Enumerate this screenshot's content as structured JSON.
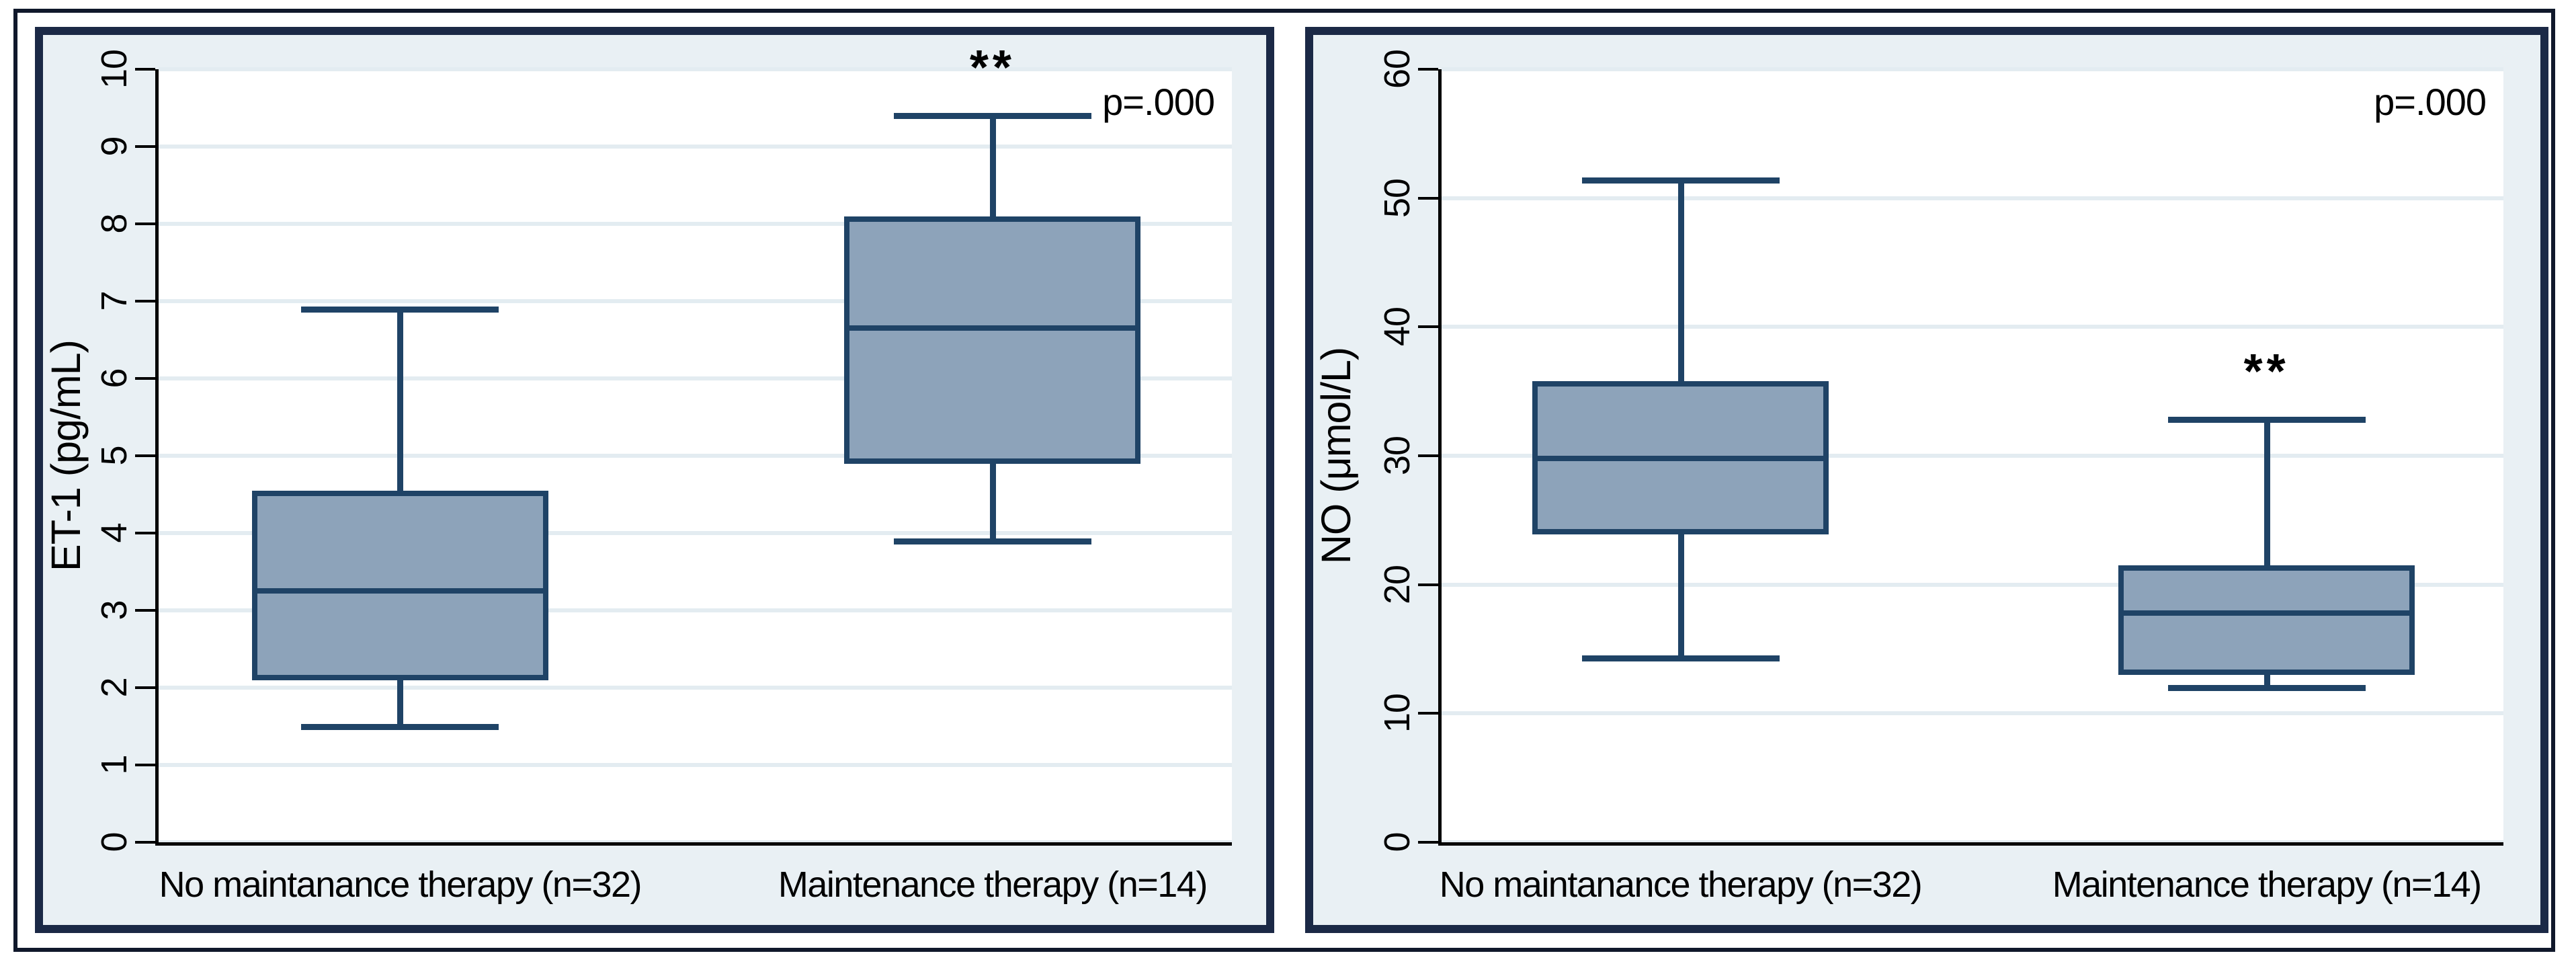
{
  "figure": {
    "p_label": "p=.000",
    "significance_marker": "**"
  },
  "colors": {
    "box_fill": "#8da3ba",
    "box_stroke": "#1f4366",
    "panel_border": "#1b2946",
    "figure_border": "#10182b",
    "panel_background": "#e9f0f4",
    "plot_background": "#ffffff",
    "gridline": "#e3ecf1",
    "text": "#000000"
  },
  "chart_data": [
    {
      "type": "box",
      "title": "",
      "xlabel": "",
      "ylabel": "ET-1 (pg/mL)",
      "ylim": [
        0,
        10
      ],
      "yticks": [
        0,
        1,
        2,
        3,
        4,
        5,
        6,
        7,
        8,
        9,
        10
      ],
      "grid": "horizontal",
      "legend": "none",
      "p_label": "p=.000",
      "groups": [
        {
          "label": "No maintanance therapy (n=32)",
          "whisker_low": 1.5,
          "q1": 2.1,
          "median": 3.25,
          "q3": 4.55,
          "whisker_high": 6.9,
          "annotation": ""
        },
        {
          "label": "Maintenance therapy (n=14)",
          "whisker_low": 3.9,
          "q1": 4.9,
          "median": 6.65,
          "q3": 8.1,
          "whisker_high": 9.4,
          "annotation": "**"
        }
      ]
    },
    {
      "type": "box",
      "title": "",
      "xlabel": "",
      "ylabel": "NO (μmol/L)",
      "ylim": [
        0,
        60
      ],
      "yticks": [
        0,
        10,
        20,
        30,
        40,
        50,
        60
      ],
      "grid": "horizontal",
      "legend": "none",
      "p_label": "p=.000",
      "groups": [
        {
          "label": "No maintanance therapy (n=32)",
          "whisker_low": 14.3,
          "q1": 23.9,
          "median": 29.8,
          "q3": 35.8,
          "whisker_high": 51.4,
          "annotation": ""
        },
        {
          "label": "Maintenance therapy (n=14)",
          "whisker_low": 12.0,
          "q1": 13.0,
          "median": 17.8,
          "q3": 21.5,
          "whisker_high": 32.8,
          "annotation": "**"
        }
      ]
    }
  ]
}
